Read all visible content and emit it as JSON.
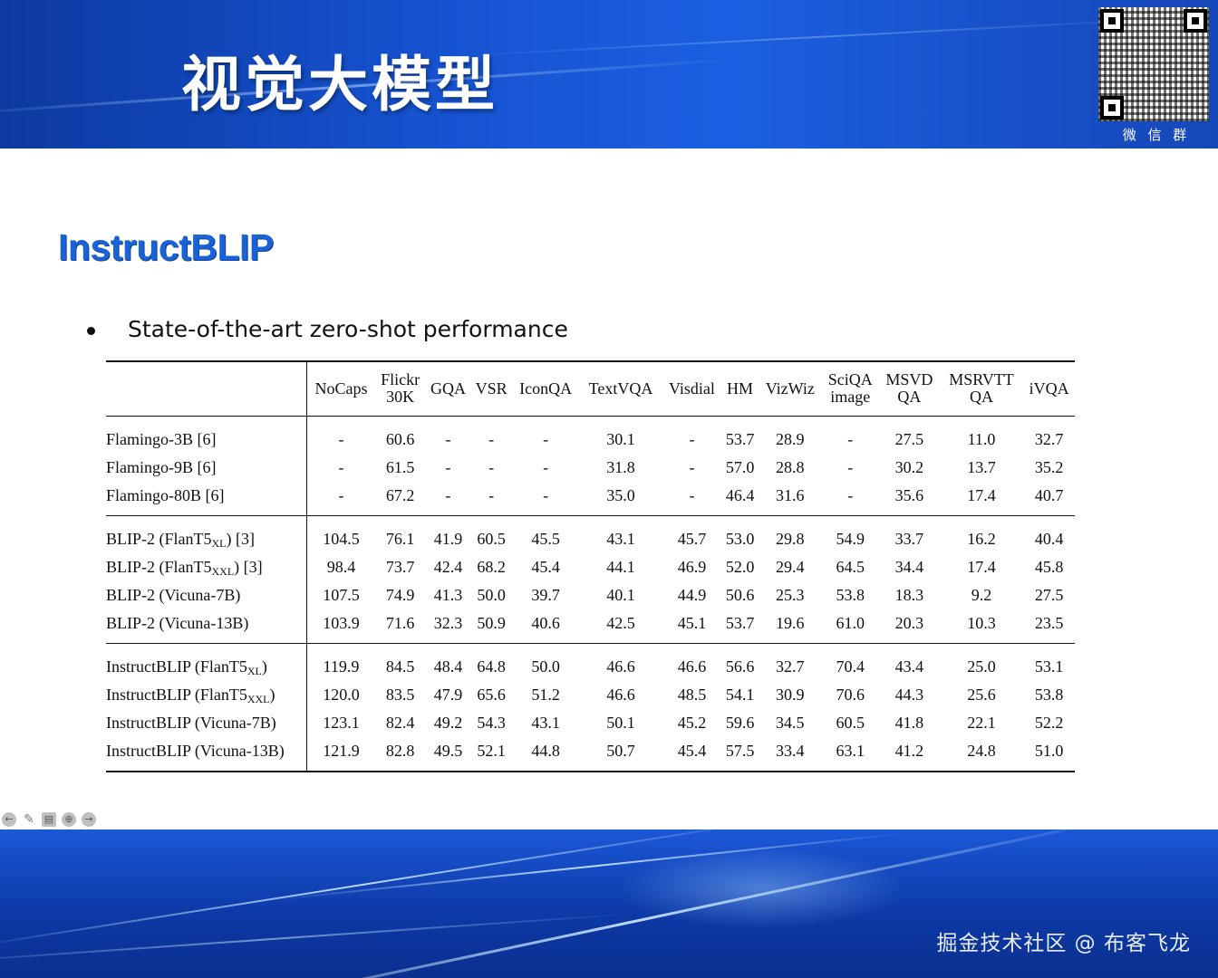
{
  "header": {
    "title": "视觉大模型",
    "qr_caption": "微 信 群"
  },
  "section": {
    "title": "InstructBLIP",
    "bullet": "State-of-the-art zero-shot performance"
  },
  "table": {
    "columns": [
      {
        "l1": "NoCaps",
        "l2": ""
      },
      {
        "l1": "Flickr",
        "l2": "30K"
      },
      {
        "l1": "GQA",
        "l2": ""
      },
      {
        "l1": "VSR",
        "l2": ""
      },
      {
        "l1": "IconQA",
        "l2": ""
      },
      {
        "l1": "TextVQA",
        "l2": ""
      },
      {
        "l1": "Visdial",
        "l2": ""
      },
      {
        "l1": "HM",
        "l2": ""
      },
      {
        "l1": "VizWiz",
        "l2": ""
      },
      {
        "l1": "SciQA",
        "l2": "image"
      },
      {
        "l1": "MSVD",
        "l2": "QA"
      },
      {
        "l1": "MSRVTT",
        "l2": "QA"
      },
      {
        "l1": "iVQA",
        "l2": ""
      }
    ],
    "rows": [
      {
        "model": "Flamingo-3B [6]",
        "values": [
          "-",
          "60.6",
          "-",
          "-",
          "-",
          "30.1",
          "-",
          "53.7",
          "28.9",
          "-",
          "27.5",
          "11.0",
          "32.7"
        ]
      },
      {
        "model": "Flamingo-9B [6]",
        "values": [
          "-",
          "61.5",
          "-",
          "-",
          "-",
          "31.8",
          "-",
          "57.0",
          "28.8",
          "-",
          "30.2",
          "13.7",
          "35.2"
        ]
      },
      {
        "model": "Flamingo-80B [6]",
        "values": [
          "-",
          "67.2",
          "-",
          "-",
          "-",
          "35.0",
          "-",
          "46.4",
          "31.6",
          "-",
          "35.6",
          "17.4",
          "40.7"
        ]
      },
      {
        "model_pre": "BLIP-2 (FlanT5",
        "model_sub": "XL",
        "model_post": ") [3]",
        "values": [
          "104.5",
          "76.1",
          "41.9",
          "60.5",
          "45.5",
          "43.1",
          "45.7",
          "53.0",
          "29.8",
          "54.9",
          "33.7",
          "16.2",
          "40.4"
        ]
      },
      {
        "model_pre": "BLIP-2 (FlanT5",
        "model_sub": "XXL",
        "model_post": ") [3]",
        "values": [
          "98.4",
          "73.7",
          "42.4",
          "68.2",
          "45.4",
          "44.1",
          "46.9",
          "52.0",
          "29.4",
          "64.5",
          "34.4",
          "17.4",
          "45.8"
        ]
      },
      {
        "model": "BLIP-2 (Vicuna-7B)",
        "values": [
          "107.5",
          "74.9",
          "41.3",
          "50.0",
          "39.7",
          "40.1",
          "44.9",
          "50.6",
          "25.3",
          "53.8",
          "18.3",
          "9.2",
          "27.5"
        ]
      },
      {
        "model": "BLIP-2 (Vicuna-13B)",
        "values": [
          "103.9",
          "71.6",
          "32.3",
          "50.9",
          "40.6",
          "42.5",
          "45.1",
          "53.7",
          "19.6",
          "61.0",
          "20.3",
          "10.3",
          "23.5"
        ]
      },
      {
        "model_pre": "InstructBLIP (FlanT5",
        "model_sub": "XL",
        "model_post": ")",
        "values": [
          "119.9",
          "84.5",
          "48.4",
          "64.8",
          "50.0",
          "46.6",
          "46.6",
          "56.6",
          "32.7",
          "70.4",
          "43.4",
          "25.0",
          "53.1"
        ]
      },
      {
        "model_pre": "InstructBLIP (FlanT5",
        "model_sub": "XXL",
        "model_post": ")",
        "values": [
          "120.0",
          "83.5",
          "47.9",
          "65.6",
          "51.2",
          "46.6",
          "48.5",
          "54.1",
          "30.9",
          "70.6",
          "44.3",
          "25.6",
          "53.8"
        ]
      },
      {
        "model": "InstructBLIP (Vicuna-7B)",
        "values": [
          "123.1",
          "82.4",
          "49.2",
          "54.3",
          "43.1",
          "50.1",
          "45.2",
          "59.6",
          "34.5",
          "60.5",
          "41.8",
          "22.1",
          "52.2"
        ]
      },
      {
        "model": "InstructBLIP (Vicuna-13B)",
        "values": [
          "121.9",
          "82.8",
          "49.5",
          "52.1",
          "44.8",
          "50.7",
          "45.4",
          "57.5",
          "33.4",
          "63.1",
          "41.2",
          "24.8",
          "51.0"
        ]
      }
    ],
    "bold_cells": [
      [
        7,
        1
      ],
      [
        8,
        3
      ],
      [
        8,
        4
      ],
      [
        8,
        6
      ],
      [
        8,
        9
      ],
      [
        8,
        10
      ],
      [
        8,
        11
      ],
      [
        8,
        12
      ],
      [
        9,
        0
      ],
      [
        9,
        7
      ],
      [
        9,
        8
      ],
      [
        10,
        2
      ],
      [
        10,
        5
      ]
    ]
  },
  "nav": {
    "icons": [
      "prev-arrow-icon",
      "pen-icon",
      "subtitle-icon",
      "zoom-icon",
      "next-arrow-icon"
    ]
  },
  "footer": {
    "watermark": "掘金技术社区 @ 布客飞龙"
  }
}
